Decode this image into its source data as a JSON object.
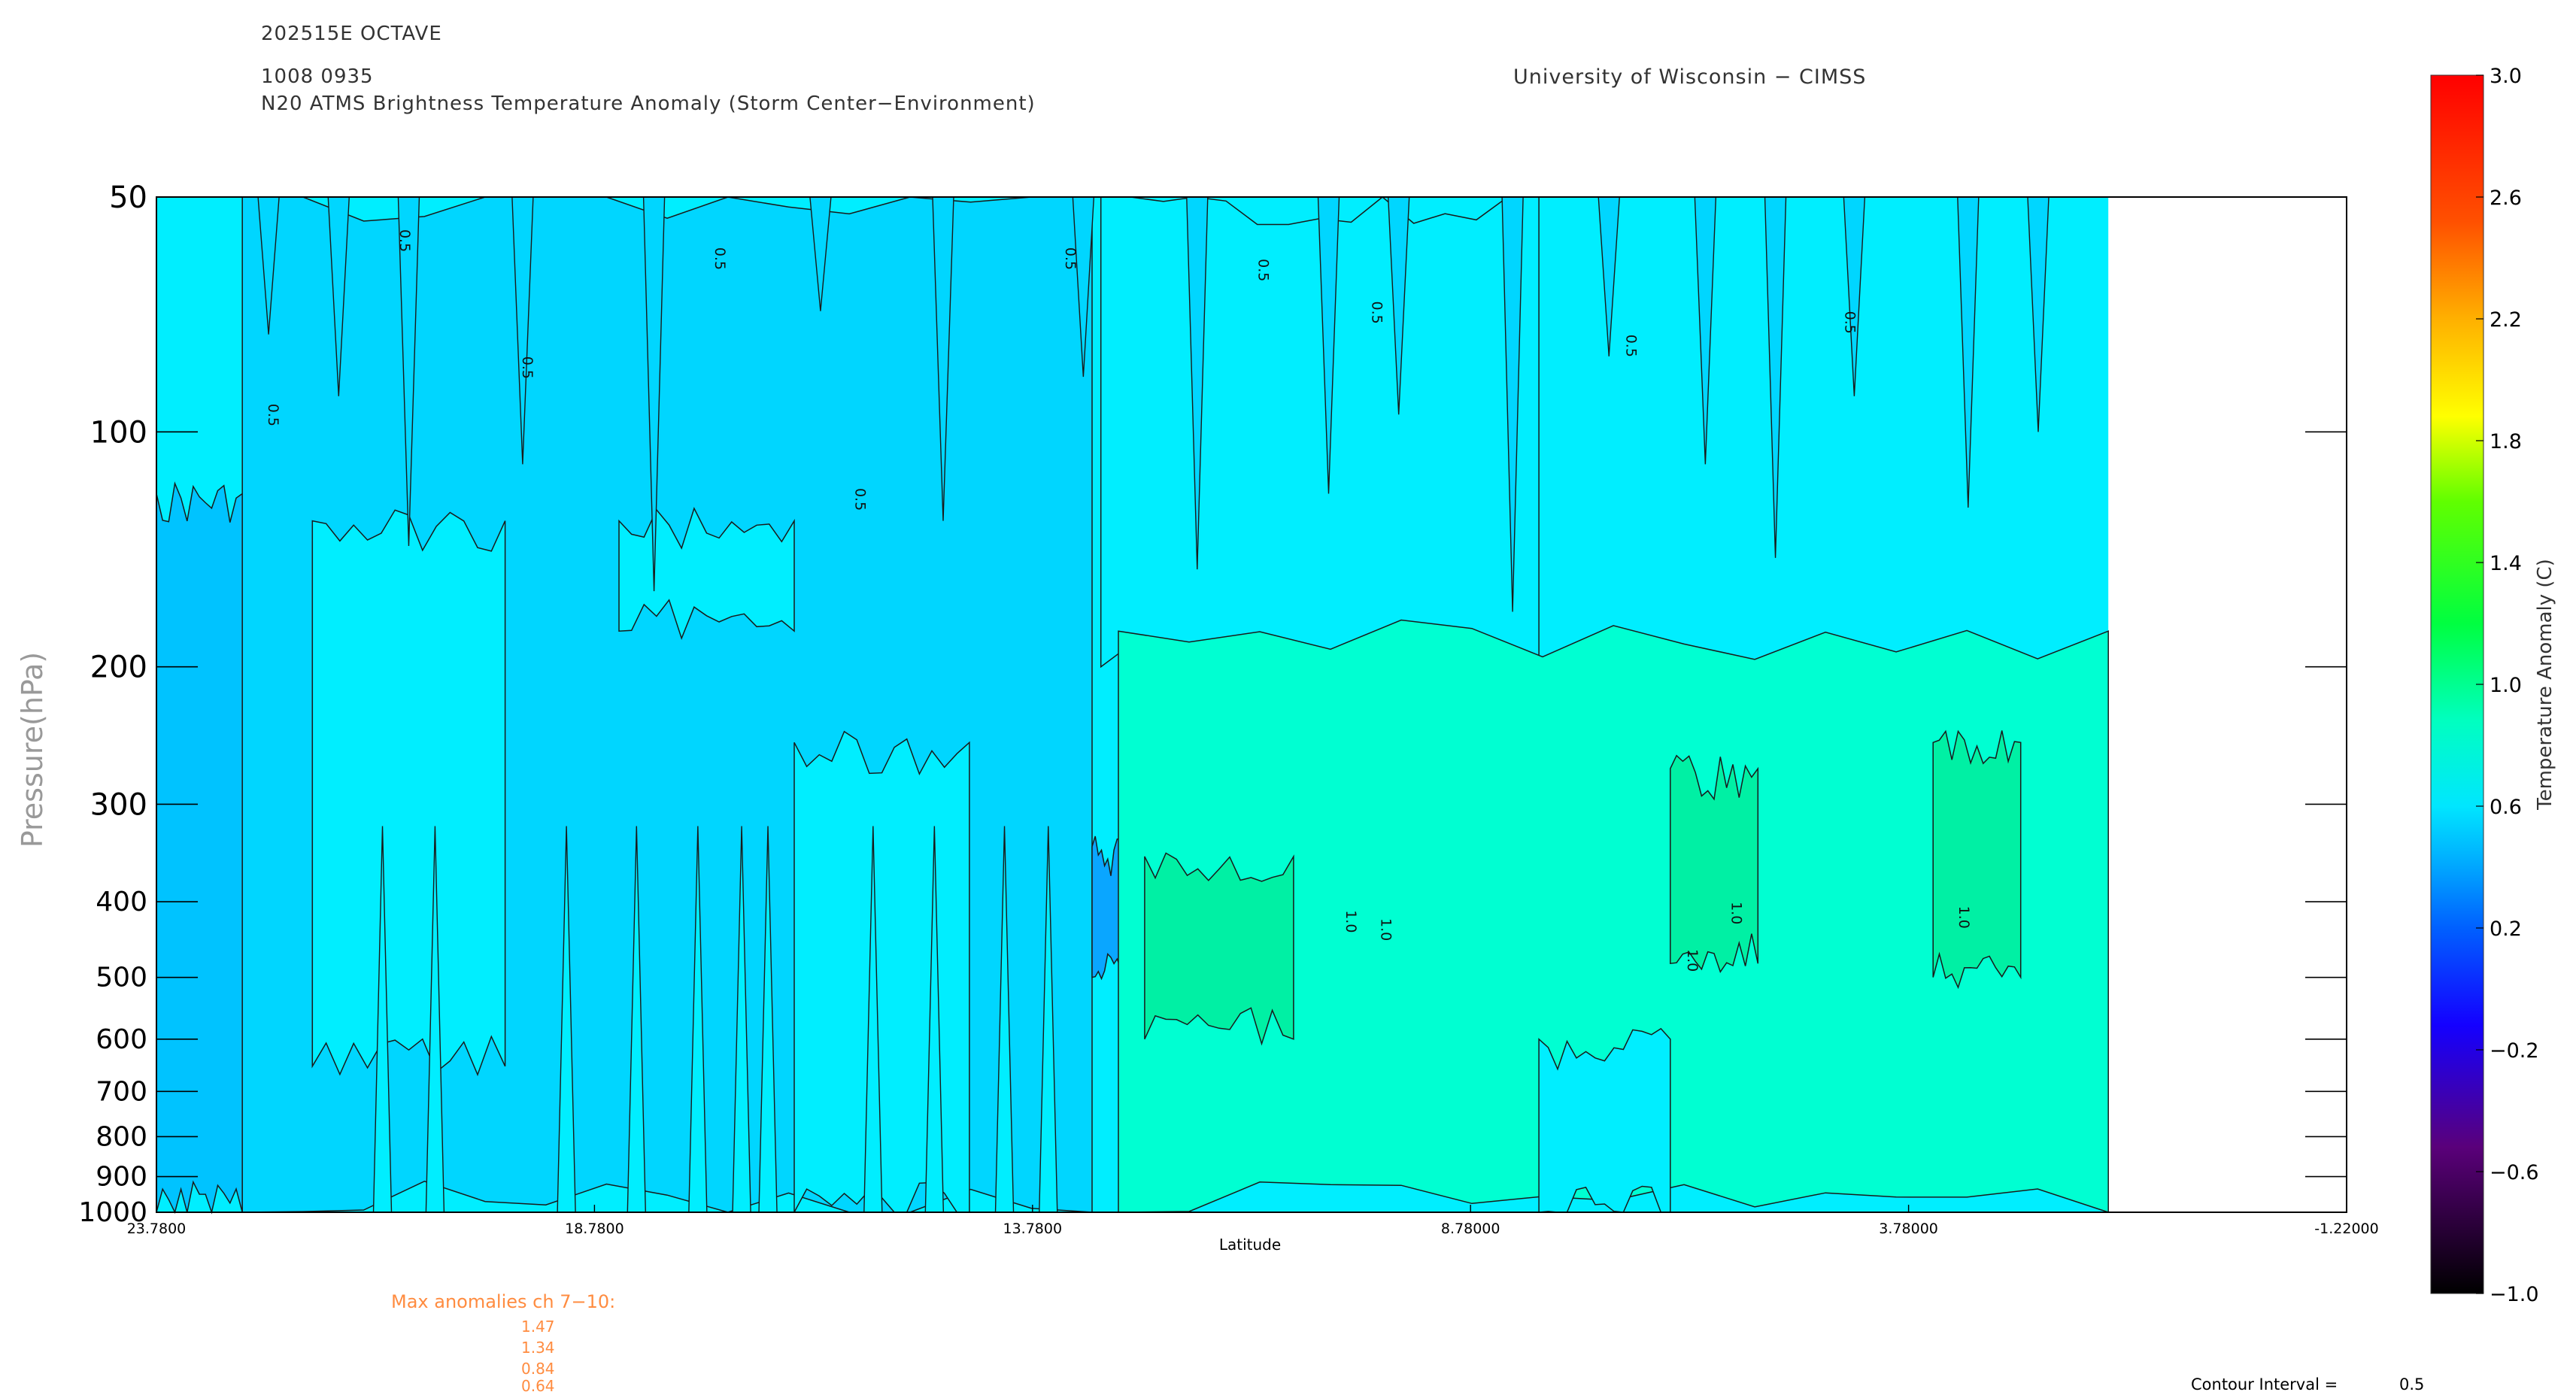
{
  "header": {
    "storm": "202515E OCTAVE",
    "datetime": "1008 0935",
    "title": "N20 ATMS Brightness Temperature Anomaly (Storm Center−Environment)",
    "institution": "University of Wisconsin − CIMSS"
  },
  "chart_data": {
    "type": "contour",
    "xlabel": "Latitude",
    "ylabel": "Pressure(hPa)",
    "xlim": [
      23.78,
      -1.22
    ],
    "ylim": [
      50,
      1000
    ],
    "yscale": "log",
    "xticks": [
      "23.7800",
      "18.7800",
      "13.7800",
      "8.78000",
      "3.78000",
      "-1.22000"
    ],
    "yticks": [
      "50",
      "100",
      "200",
      "300",
      "400",
      "500",
      "600",
      "700",
      "800",
      "900",
      "1000"
    ],
    "data_extent_lat": [
      23.78,
      1.5
    ],
    "contour_interval": 0.5,
    "regions": [
      {
        "lat_range": [
          23.78,
          22.8
        ],
        "p_range": [
          120,
          1000
        ],
        "anomaly": 0.35
      },
      {
        "lat_range": [
          22.8,
          13.1
        ],
        "p_range": [
          50,
          1000
        ],
        "anomaly": 0.45
      },
      {
        "lat_range": [
          22.0,
          19.8
        ],
        "p_range": [
          130,
          650
        ],
        "anomaly": 0.6
      },
      {
        "lat_range": [
          18.5,
          16.5
        ],
        "p_range": [
          130,
          180
        ],
        "anomaly": 0.6
      },
      {
        "lat_range": [
          16.5,
          14.5
        ],
        "p_range": [
          250,
          1000
        ],
        "anomaly": 0.6
      },
      {
        "lat_range": [
          13.1,
          12.6
        ],
        "p_range": [
          340,
          500
        ],
        "anomaly": 0.3
      },
      {
        "lat_range": [
          13.0,
          8.0
        ],
        "p_range": [
          50,
          200
        ],
        "anomaly": 0.6
      },
      {
        "lat_range": [
          12.8,
          1.5
        ],
        "p_range": [
          180,
          1000
        ],
        "anomaly": 0.85
      },
      {
        "lat_range": [
          12.5,
          10.8
        ],
        "p_range": [
          350,
          600
        ],
        "anomaly": 1.05
      },
      {
        "lat_range": [
          6.5,
          5.5
        ],
        "p_range": [
          270,
          480
        ],
        "anomaly": 1.05
      },
      {
        "lat_range": [
          3.5,
          2.5
        ],
        "p_range": [
          250,
          500
        ],
        "anomaly": 1.05
      },
      {
        "lat_range": [
          8.0,
          6.5
        ],
        "p_range": [
          600,
          1000
        ],
        "anomaly": 0.6
      }
    ],
    "contour_labels": [
      "0.5",
      "1.0"
    ],
    "colorbar": {
      "label": "Temperature Anomaly (C)",
      "ticks": [
        "3.0",
        "2.6",
        "2.2",
        "1.8",
        "1.4",
        "1.0",
        "0.6",
        "0.2",
        "−0.2",
        "−0.6",
        "−1.0"
      ],
      "range": [
        -1.0,
        3.0
      ]
    }
  },
  "max_anomalies": {
    "title": "Max anomalies ch 7−10:",
    "values": [
      "1.47",
      "1.34",
      "0.84",
      "0.64"
    ]
  },
  "footer": {
    "contour_interval_label": "Contour Interval =",
    "contour_interval_value": "0.5"
  },
  "colors": {
    "level_035": "#00c3ff",
    "level_045": "#00d6ff",
    "level_060": "#00eeff",
    "level_085": "#00ffd2",
    "level_105": "#00f0a4",
    "level_030": "#0aa6ff",
    "text_orange": "#ff8c40"
  }
}
